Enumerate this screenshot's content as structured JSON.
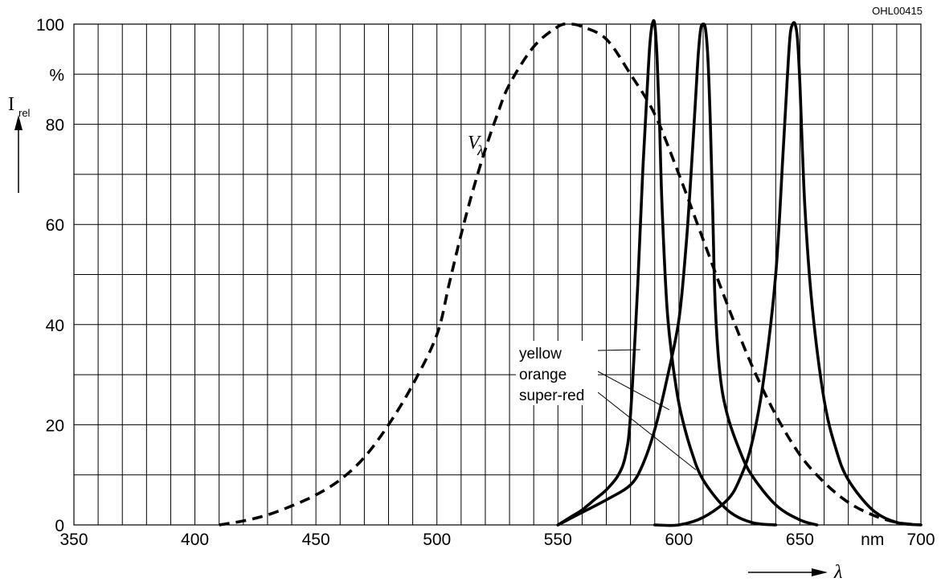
{
  "chart_data": {
    "type": "line",
    "code": "OHL00415",
    "ylabel": "I",
    "ylabel_sub": "rel",
    "xlabel": "λ",
    "x_unit": "nm",
    "y_unit": "%",
    "xlim": [
      350,
      700
    ],
    "ylim": [
      0,
      100
    ],
    "x_ticks": [
      350,
      400,
      450,
      500,
      550,
      600,
      650,
      700
    ],
    "y_ticks": [
      0,
      20,
      40,
      60,
      80,
      100
    ],
    "x_minor_step": 10,
    "y_minor_step": 10,
    "grid": true,
    "series": [
      {
        "name": "Vλ",
        "style": "dashed",
        "x": [
          410,
          420,
          430,
          440,
          450,
          460,
          470,
          480,
          490,
          500,
          505,
          510,
          515,
          520,
          525,
          530,
          540,
          550,
          555,
          560,
          570,
          580,
          590,
          600,
          610,
          620,
          630,
          640,
          650,
          660,
          670,
          680,
          690,
          700
        ],
        "y": [
          0,
          0.8,
          2,
          3.8,
          6,
          9,
          13.5,
          20,
          28,
          38,
          48,
          58,
          67,
          75,
          82,
          88,
          95.5,
          99.5,
          100,
          99.5,
          97,
          90,
          82,
          70,
          57,
          44,
          32,
          22,
          14,
          8.5,
          4.5,
          2,
          0.5,
          0
        ]
      },
      {
        "name": "yellow",
        "style": "solid",
        "x": [
          550,
          555,
          560,
          565,
          570,
          575,
          578,
          580,
          583,
          585,
          587,
          588,
          589,
          590,
          591,
          592,
          593,
          595,
          597,
          599,
          601,
          605,
          610,
          620,
          630,
          640
        ],
        "y": [
          0,
          1.5,
          3,
          5,
          7,
          10,
          14,
          22,
          48,
          70,
          88,
          96,
          100,
          100,
          93,
          80,
          64,
          44,
          34,
          27,
          22,
          15,
          9,
          3,
          0.5,
          0
        ]
      },
      {
        "name": "orange",
        "style": "solid",
        "x": [
          550,
          560,
          570,
          580,
          585,
          590,
          595,
          600,
          603,
          605,
          607,
          608,
          609,
          610,
          611,
          612,
          613,
          614,
          615,
          617,
          620,
          625,
          630,
          640,
          650,
          657
        ],
        "y": [
          0,
          2.5,
          5,
          8,
          12,
          19,
          29,
          41,
          56,
          70,
          86,
          94,
          99,
          100,
          99,
          93,
          80,
          62,
          44,
          30,
          22,
          15,
          10,
          4,
          1,
          0
        ]
      },
      {
        "name": "super-red",
        "style": "solid",
        "x": [
          590,
          600,
          610,
          620,
          625,
          630,
          635,
          640,
          643,
          645,
          646,
          647,
          648,
          649,
          650,
          652,
          655,
          660,
          665,
          670,
          680,
          690,
          700
        ],
        "y": [
          0,
          0,
          1.5,
          5,
          9,
          16,
          29,
          50,
          74,
          91,
          98,
          100,
          100,
          97,
          88,
          64,
          44,
          25,
          15,
          9,
          3,
          0.5,
          0
        ]
      }
    ],
    "annotations": {
      "v_lambda_main": "V",
      "v_lambda_sub": "λ"
    }
  }
}
